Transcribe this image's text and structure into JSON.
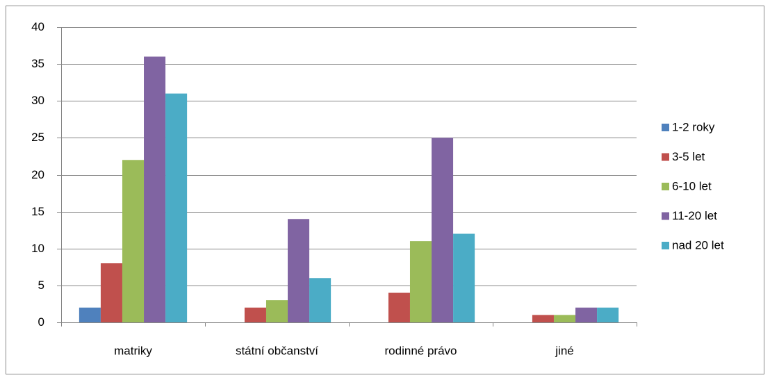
{
  "chart_data": {
    "type": "bar",
    "categories": [
      "matriky",
      "státní občanství",
      "rodinné právo",
      "jiné"
    ],
    "series": [
      {
        "name": "1-2 roky",
        "color": "#4f81bd",
        "values": [
          2,
          0,
          0,
          0
        ]
      },
      {
        "name": "3-5 let",
        "color": "#c0504d",
        "values": [
          8,
          2,
          4,
          1
        ]
      },
      {
        "name": "6-10 let",
        "color": "#9bbb59",
        "values": [
          22,
          3,
          11,
          1
        ]
      },
      {
        "name": "11-20 let",
        "color": "#8064a2",
        "values": [
          36,
          14,
          25,
          2
        ]
      },
      {
        "name": "nad 20 let",
        "color": "#4bacc6",
        "values": [
          31,
          6,
          12,
          2
        ]
      }
    ],
    "ylim": [
      0,
      40
    ],
    "yticks": [
      0,
      5,
      10,
      15,
      20,
      25,
      30,
      35,
      40
    ],
    "grid": true,
    "legend": "right"
  }
}
